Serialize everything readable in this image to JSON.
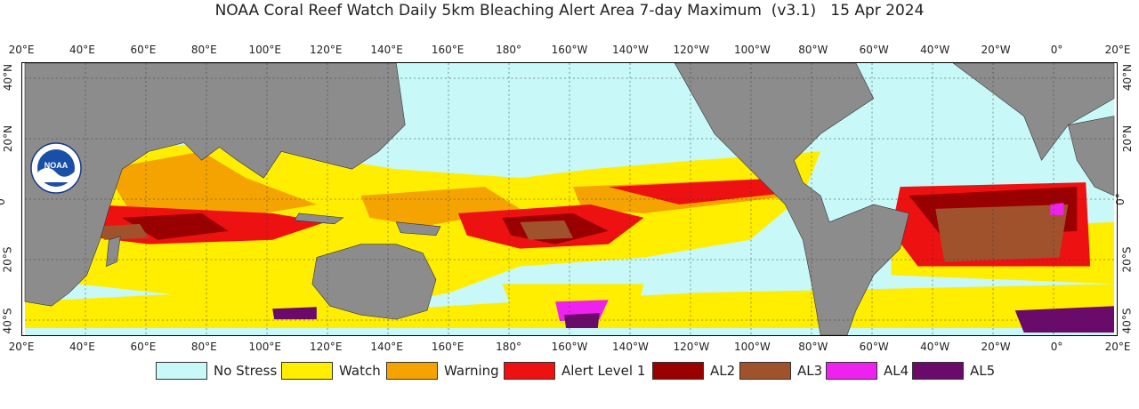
{
  "title": "NOAA Coral Reef Watch Daily 5km Bleaching Alert Area 7-day Maximum  (v3.1)   15 Apr 2024",
  "longitude_ticks": [
    "20°E",
    "40°E",
    "60°E",
    "80°E",
    "100°E",
    "120°E",
    "140°E",
    "160°E",
    "180°",
    "160°W",
    "140°W",
    "120°W",
    "100°W",
    "80°W",
    "60°W",
    "40°W",
    "20°W",
    "0°",
    "20°E"
  ],
  "latitude_ticks_left": [
    "40°N",
    "20°N",
    "0°",
    "20°S",
    "40°S"
  ],
  "latitude_ticks_right": [
    "40°N",
    "20°N",
    "0°",
    "20°S",
    "40°S"
  ],
  "logo": {
    "text": "NOAA",
    "icon": "noaa-logo-icon"
  },
  "legend": [
    {
      "label": "No Stress",
      "color": "#c8f8f8"
    },
    {
      "label": "Watch",
      "color": "#ffee00"
    },
    {
      "label": "Warning",
      "color": "#f5a300"
    },
    {
      "label": "Alert Level 1",
      "color": "#ee1111"
    },
    {
      "label": "AL2",
      "color": "#9a0000"
    },
    {
      "label": "AL3",
      "color": "#a0522d"
    },
    {
      "label": "AL4",
      "color": "#ee22ee"
    },
    {
      "label": "AL5",
      "color": "#6a0a6a"
    }
  ],
  "colors": {
    "land": "#8c8c8c",
    "ocean": "#c8f8f8"
  }
}
